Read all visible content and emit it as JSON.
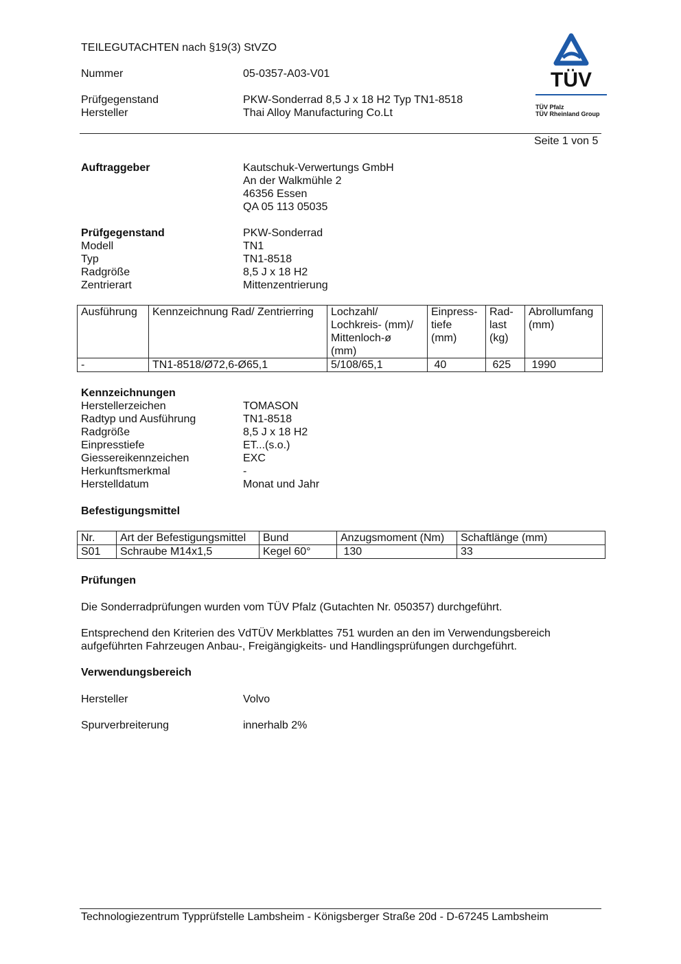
{
  "header": {
    "title": "TEILEGUTACHTEN nach §19(3) StVZO",
    "nummer_label": "Nummer",
    "nummer": "05-0357-A03-V01",
    "pruef_label": "Prüfgegenstand",
    "pruef": "PKW-Sonderrad 8,5 J x 18 H2 Typ TN1-8518",
    "hersteller_label": "Hersteller",
    "hersteller": "Thai Alloy Manufacturing Co.Lt",
    "page": "Seite 1 von 5"
  },
  "logo": {
    "brand": "TÜV",
    "line1": "TÜV Pfalz",
    "line2": "TÜV Rheinland Group",
    "color": "#1e5aa8"
  },
  "auftraggeber": {
    "label": "Auftraggeber",
    "lines": [
      "Kautschuk-Verwertungs GmbH",
      "An der Walkmühle 2",
      "46356 Essen",
      "QA 05 113 05035"
    ]
  },
  "pruefgegenstand": {
    "rows": [
      [
        "Prüfgegenstand",
        "PKW-Sonderrad"
      ],
      [
        "Modell",
        "TN1"
      ],
      [
        "Typ",
        "TN1-8518"
      ],
      [
        "Radgröße",
        "8,5 J x 18 H2"
      ],
      [
        "Zentrierart",
        "Mittenzentrierung"
      ]
    ]
  },
  "table1": {
    "headers": [
      "Ausführung",
      "Kennzeichnung Rad/ Zentrierring",
      "Lochzahl/ Lochkreis- (mm)/ Mittenloch-ø (mm)",
      "Einpress-tiefe (mm)",
      "Rad-last (kg)",
      "Abrollumfang (mm)"
    ],
    "header_lines": [
      [
        "Ausführung"
      ],
      [
        "Kennzeichnung Rad/ Zentrierring"
      ],
      [
        "Lochzahl/",
        "Lochkreis- (mm)/",
        "Mittenloch-ø",
        "(mm)"
      ],
      [
        "Einpress-",
        "tiefe",
        "(mm)"
      ],
      [
        "Rad-",
        "last",
        "(kg)"
      ],
      [
        "Abrollumfang",
        "(mm)"
      ]
    ],
    "row": [
      "-",
      "TN1-8518/Ø72,6-Ø65,1",
      "5/108/65,1",
      " 40",
      " 625",
      " 1990"
    ]
  },
  "kennzeichnungen": {
    "title": "Kennzeichnungen",
    "rows": [
      [
        "Herstellerzeichen",
        "TOMASON"
      ],
      [
        "Radtyp und Ausführung",
        "TN1-8518"
      ],
      [
        "Radgröße",
        "8,5 J x 18 H2"
      ],
      [
        "Einpresstiefe",
        "ET...(s.o.)"
      ],
      [
        "Giessereikennzeichen",
        "EXC"
      ],
      [
        "Herkunftsmerkmal",
        "-"
      ],
      [
        "Herstelldatum",
        "Monat und Jahr"
      ]
    ]
  },
  "befestigung": {
    "title": "Befestigungsmittel",
    "headers": [
      "Nr.",
      "Art der Befestigungsmittel",
      "Bund",
      "Anzugsmoment (Nm)",
      "Schaftlänge (mm)"
    ],
    "row": [
      "S01",
      "Schraube M14x1,5",
      "Kegel 60°",
      " 130",
      "33"
    ]
  },
  "pruefungen": {
    "title": "Prüfungen",
    "p1": "Die Sonderradprüfungen wurden vom TÜV Pfalz (Gutachten Nr. 050357) durchgeführt.",
    "p2a": "Entsprechend den Kriterien des VdTÜV Merkblattes 751 wurden an den im Verwendungsbereich",
    "p2b": "aufgeführten Fahrzeugen Anbau-, Freigängigkeits- und Handlingsprüfungen durchgeführt."
  },
  "verwendung": {
    "title": "Verwendungsbereich",
    "hersteller_label": "Hersteller",
    "hersteller": "Volvo",
    "spur_label": "Spurverbreiterung",
    "spur": "innerhalb 2%"
  },
  "footer": "Technologiezentrum Typprüfstelle Lambsheim - Königsberger Straße 20d - D-67245 Lambsheim"
}
